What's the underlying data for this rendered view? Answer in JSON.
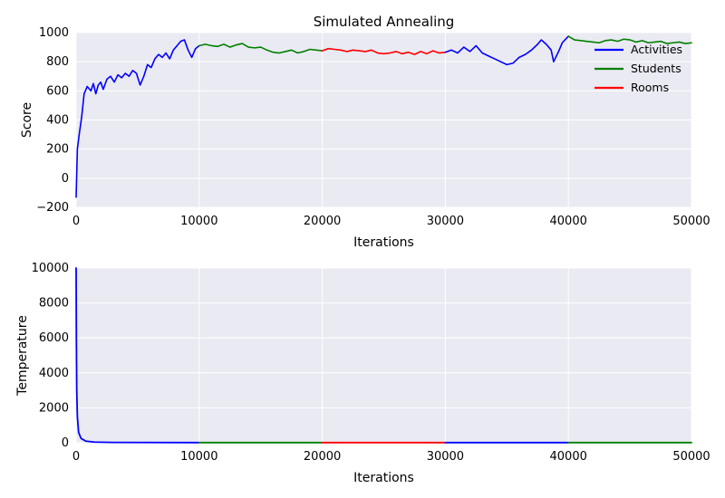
{
  "chart_data": [
    {
      "type": "line",
      "title": "Simulated Annealing",
      "xlabel": "Iterations",
      "ylabel": "Score",
      "xlim": [
        0,
        50000
      ],
      "ylim": [
        -200,
        1000
      ],
      "x_ticks": [
        0,
        10000,
        20000,
        30000,
        40000,
        50000
      ],
      "y_ticks": [
        -200,
        0,
        200,
        400,
        600,
        800,
        1000
      ],
      "x_tick_labels": [
        "0",
        "10000",
        "20000",
        "30000",
        "40000",
        "50000"
      ],
      "y_tick_labels": [
        "−200",
        "0",
        "200",
        "400",
        "600",
        "800",
        "1000"
      ],
      "grid": true,
      "legend": {
        "placement": "top-right",
        "entries": [
          {
            "label": "Activities",
            "color": "#0000ff"
          },
          {
            "label": "Students",
            "color": "#008000"
          },
          {
            "label": "Rooms",
            "color": "#ff0000"
          }
        ]
      },
      "series": [
        {
          "name": "Activities",
          "color": "#0000ff",
          "points": [
            [
              0,
              -130
            ],
            [
              100,
              200
            ],
            [
              250,
              300
            ],
            [
              450,
              420
            ],
            [
              650,
              580
            ],
            [
              900,
              630
            ],
            [
              1200,
              600
            ],
            [
              1400,
              650
            ],
            [
              1600,
              580
            ],
            [
              1800,
              640
            ],
            [
              2000,
              660
            ],
            [
              2200,
              610
            ],
            [
              2500,
              680
            ],
            [
              2800,
              700
            ],
            [
              3100,
              660
            ],
            [
              3400,
              710
            ],
            [
              3700,
              690
            ],
            [
              4000,
              720
            ],
            [
              4300,
              700
            ],
            [
              4600,
              740
            ],
            [
              4900,
              720
            ],
            [
              5200,
              640
            ],
            [
              5500,
              700
            ],
            [
              5800,
              780
            ],
            [
              6100,
              760
            ],
            [
              6400,
              820
            ],
            [
              6700,
              850
            ],
            [
              7000,
              830
            ],
            [
              7300,
              860
            ],
            [
              7600,
              820
            ],
            [
              7900,
              880
            ],
            [
              8200,
              910
            ],
            [
              8500,
              940
            ],
            [
              8800,
              950
            ],
            [
              9100,
              880
            ],
            [
              9400,
              830
            ],
            [
              9700,
              890
            ],
            [
              10000,
              910
            ]
          ]
        },
        {
          "name": "Students",
          "color": "#008000",
          "points": [
            [
              10000,
              910
            ],
            [
              10500,
              920
            ],
            [
              11000,
              910
            ],
            [
              11500,
              905
            ],
            [
              12000,
              920
            ],
            [
              12500,
              900
            ],
            [
              13000,
              915
            ],
            [
              13500,
              925
            ],
            [
              14000,
              900
            ],
            [
              14500,
              895
            ],
            [
              15000,
              900
            ],
            [
              15500,
              880
            ],
            [
              16000,
              865
            ],
            [
              16500,
              860
            ],
            [
              17000,
              870
            ],
            [
              17500,
              880
            ],
            [
              18000,
              860
            ],
            [
              18500,
              870
            ],
            [
              19000,
              885
            ],
            [
              19500,
              880
            ],
            [
              20000,
              875
            ]
          ]
        },
        {
          "name": "Rooms",
          "color": "#ff0000",
          "points": [
            [
              20000,
              875
            ],
            [
              20500,
              890
            ],
            [
              21000,
              885
            ],
            [
              21500,
              880
            ],
            [
              22000,
              870
            ],
            [
              22500,
              880
            ],
            [
              23000,
              875
            ],
            [
              23500,
              870
            ],
            [
              24000,
              880
            ],
            [
              24500,
              860
            ],
            [
              25000,
              855
            ],
            [
              25500,
              860
            ],
            [
              26000,
              870
            ],
            [
              26500,
              855
            ],
            [
              27000,
              865
            ],
            [
              27500,
              850
            ],
            [
              28000,
              870
            ],
            [
              28500,
              855
            ],
            [
              29000,
              875
            ],
            [
              29500,
              860
            ],
            [
              30000,
              865
            ]
          ]
        },
        {
          "name": "Activities",
          "color": "#0000ff",
          "points": [
            [
              30000,
              865
            ],
            [
              30500,
              880
            ],
            [
              31000,
              860
            ],
            [
              31500,
              900
            ],
            [
              32000,
              870
            ],
            [
              32500,
              910
            ],
            [
              33000,
              860
            ],
            [
              33500,
              840
            ],
            [
              34000,
              820
            ],
            [
              34500,
              800
            ],
            [
              35000,
              780
            ],
            [
              35500,
              790
            ],
            [
              36000,
              830
            ],
            [
              36500,
              850
            ],
            [
              37000,
              880
            ],
            [
              37500,
              920
            ],
            [
              37800,
              950
            ],
            [
              38200,
              920
            ],
            [
              38600,
              880
            ],
            [
              38800,
              800
            ],
            [
              39200,
              870
            ],
            [
              39500,
              930
            ],
            [
              40000,
              975
            ]
          ]
        },
        {
          "name": "Students",
          "color": "#008000",
          "points": [
            [
              40000,
              975
            ],
            [
              40500,
              950
            ],
            [
              41000,
              945
            ],
            [
              41500,
              940
            ],
            [
              42000,
              935
            ],
            [
              42500,
              930
            ],
            [
              43000,
              945
            ],
            [
              43500,
              950
            ],
            [
              44000,
              940
            ],
            [
              44500,
              955
            ],
            [
              45000,
              950
            ],
            [
              45500,
              935
            ],
            [
              46000,
              945
            ],
            [
              46500,
              930
            ],
            [
              47000,
              935
            ],
            [
              47500,
              940
            ],
            [
              48000,
              925
            ],
            [
              48500,
              930
            ],
            [
              49000,
              935
            ],
            [
              49500,
              925
            ],
            [
              50000,
              930
            ]
          ]
        }
      ]
    },
    {
      "type": "line",
      "title": "",
      "xlabel": "Iterations",
      "ylabel": "Temperature",
      "xlim": [
        0,
        50000
      ],
      "ylim": [
        0,
        10000
      ],
      "x_ticks": [
        0,
        10000,
        20000,
        30000,
        40000,
        50000
      ],
      "y_ticks": [
        0,
        2000,
        4000,
        6000,
        8000,
        10000
      ],
      "x_tick_labels": [
        "0",
        "10000",
        "20000",
        "30000",
        "40000",
        "50000"
      ],
      "y_tick_labels": [
        "0",
        "2000",
        "4000",
        "6000",
        "8000",
        "10000"
      ],
      "grid": true,
      "series": [
        {
          "name": "Activities",
          "color": "#0000ff",
          "points": [
            [
              0,
              10000
            ],
            [
              20,
              6000
            ],
            [
              50,
              3000
            ],
            [
              100,
              1500
            ],
            [
              200,
              600
            ],
            [
              400,
              250
            ],
            [
              800,
              90
            ],
            [
              1500,
              40
            ],
            [
              3000,
              20
            ],
            [
              10000,
              10
            ]
          ]
        },
        {
          "name": "Students",
          "color": "#008000",
          "points": [
            [
              10000,
              10
            ],
            [
              20000,
              10
            ]
          ]
        },
        {
          "name": "Rooms",
          "color": "#ff0000",
          "points": [
            [
              20000,
              10
            ],
            [
              30000,
              10
            ]
          ]
        },
        {
          "name": "Activities",
          "color": "#0000ff",
          "points": [
            [
              30000,
              10
            ],
            [
              40000,
              10
            ]
          ]
        },
        {
          "name": "Students",
          "color": "#008000",
          "points": [
            [
              40000,
              10
            ],
            [
              50000,
              10
            ]
          ]
        }
      ]
    }
  ]
}
